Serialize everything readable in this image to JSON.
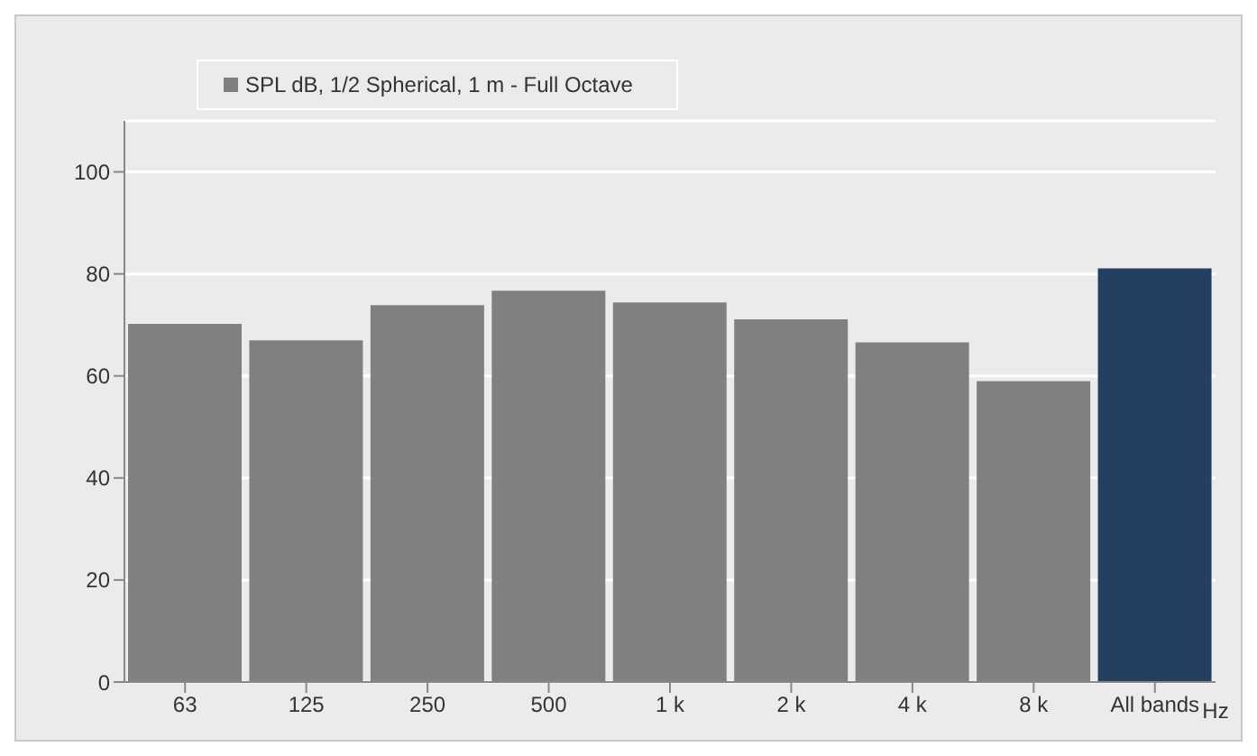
{
  "chart_data": {
    "type": "bar",
    "categories": [
      "63",
      "125",
      "250",
      "500",
      "1 k",
      "2 k",
      "4 k",
      "8 k",
      "All bands"
    ],
    "xlabel": "Hz",
    "series": [
      {
        "name": "SPL dB, 1/2 Spherical, 1 m - Full Octave",
        "color": "#808080",
        "colors": [
          "#808080",
          "#808080",
          "#808080",
          "#808080",
          "#808080",
          "#808080",
          "#808080",
          "#808080",
          "#243f60"
        ],
        "values": [
          70.2,
          67.0,
          73.9,
          76.7,
          74.4,
          71.1,
          66.6,
          59.0,
          81.1
        ]
      }
    ],
    "ylim": [
      0,
      110
    ],
    "yticks": [
      0,
      20,
      40,
      60,
      80,
      100
    ],
    "grid": "y",
    "legend": "top left"
  }
}
